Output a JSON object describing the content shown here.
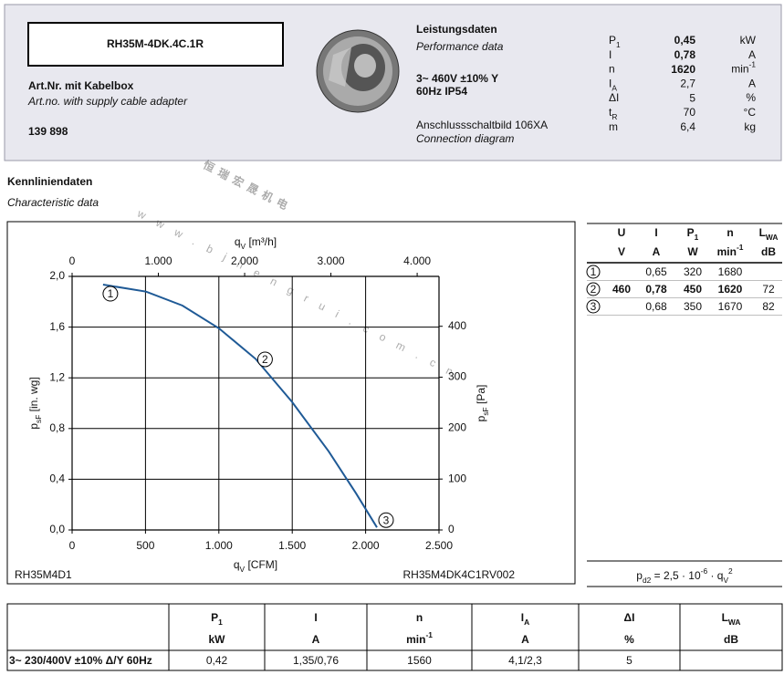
{
  "header": {
    "model": "RH35M-4DK.4C.1R",
    "art_de": "Art.Nr.  mit Kabelbox",
    "art_en": "Art.no.  with supply cable adapter",
    "number": "139 898",
    "perf_title": "Leistungsdaten",
    "perf_subtitle": "Performance data",
    "spec_line1": "3~ 460V ±10% Y",
    "spec_line2": "60Hz  IP54",
    "conn_de": "Anschlussschaltbild 106XA",
    "conn_en": "Connection diagram",
    "params": [
      {
        "symbol": [
          {
            "text": "P"
          },
          {
            "sub": "1"
          }
        ],
        "value": "0,45",
        "unit": [
          {
            "text": "kW"
          }
        ],
        "bold": true
      },
      {
        "symbol": [
          {
            "text": "I"
          }
        ],
        "value": "0,78",
        "unit": [
          {
            "text": "A"
          }
        ],
        "bold": true
      },
      {
        "symbol": [
          {
            "text": "n"
          }
        ],
        "value": "1620",
        "unit": [
          {
            "text": "min"
          },
          {
            "sup": "-1"
          }
        ],
        "bold": true
      },
      {
        "symbol": [
          {
            "text": "I"
          },
          {
            "sub": "A"
          }
        ],
        "value": "2,7",
        "unit": [
          {
            "text": "A"
          }
        ],
        "bold": false
      },
      {
        "symbol": [
          {
            "text": "ΔI"
          }
        ],
        "value": "5",
        "unit": [
          {
            "text": "%"
          }
        ],
        "bold": false
      },
      {
        "symbol": [
          {
            "text": "t"
          },
          {
            "sub": "R"
          }
        ],
        "value": "70",
        "unit": [
          {
            "text": "°C"
          }
        ],
        "bold": false
      },
      {
        "symbol": [
          {
            "text": "m"
          }
        ],
        "value": "6,4",
        "unit": [
          {
            "text": "kg"
          }
        ],
        "bold": false
      }
    ]
  },
  "section": {
    "title": "Kennliniendaten",
    "subtitle": "Characteristic data"
  },
  "watermark": {
    "text": "恒瑞宏晟机电",
    "url": "www.bjhengrui.com.cn"
  },
  "chart_data": {
    "type": "line",
    "x_label": [
      {
        "text": "q"
      },
      {
        "sub": "V"
      },
      {
        "text": " [CFM]"
      }
    ],
    "x2_label": [
      {
        "text": "q"
      },
      {
        "sub": "V"
      },
      {
        "text": " [m³/h]"
      }
    ],
    "y_label": [
      {
        "text": "p"
      },
      {
        "sub": "sF"
      },
      {
        "text": " [in. wg]"
      }
    ],
    "y2_label": [
      {
        "text": "p"
      },
      {
        "sub": "sF"
      },
      {
        "text": " [Pa]"
      }
    ],
    "xlim": [
      0,
      2500
    ],
    "xticks": [
      0,
      500,
      {
        "value": 1000,
        "label": "1.000"
      },
      {
        "value": 1500,
        "label": "1.500"
      },
      {
        "value": 2000,
        "label": "2.000"
      },
      {
        "value": 2500,
        "label": "2.500"
      }
    ],
    "x2lim": [
      0,
      4253
    ],
    "x2ticks": [
      0,
      {
        "value": 1000,
        "label": "1.000"
      },
      {
        "value": 2000,
        "label": "2.000"
      },
      {
        "value": 3000,
        "label": "3.000"
      },
      {
        "value": 4000,
        "label": "4.000"
      }
    ],
    "ylim": [
      0,
      2.0
    ],
    "yticks": [
      {
        "value": 0,
        "label": "0,0"
      },
      {
        "value": 0.4,
        "label": "0,4"
      },
      {
        "value": 0.8,
        "label": "0,8"
      },
      {
        "value": 1.2,
        "label": "1,2"
      },
      {
        "value": 1.6,
        "label": "1,6"
      },
      {
        "value": 2.0,
        "label": "2,0"
      }
    ],
    "y2lim": [
      0,
      498
    ],
    "y2ticks": [
      0,
      100,
      200,
      300,
      400
    ],
    "grid": true,
    "color": "#1f5a96",
    "x": [
      211,
      504,
      752,
      1001,
      1250,
      1499,
      1748,
      1934,
      2077
    ],
    "values": [
      1.935,
      1.88,
      1.77,
      1.59,
      1.35,
      1.01,
      0.62,
      0.29,
      0.02
    ],
    "operating_points": [
      {
        "label": "1",
        "x": 211,
        "value": 1.935
      },
      {
        "label": "2",
        "x": 1240,
        "value": 1.36
      },
      {
        "label": "3",
        "x": 2077,
        "value": 0.02
      }
    ],
    "note_left": "RH35M4D1",
    "note_right": "RH35M4DK4C1RV002"
  },
  "perf_table": {
    "header": [
      [
        {
          "text": "U"
        }
      ],
      [
        {
          "text": "I"
        }
      ],
      [
        {
          "text": "P"
        },
        {
          "sub": "1"
        }
      ],
      [
        {
          "text": "n"
        }
      ],
      [
        {
          "text": "L"
        },
        {
          "sub": "WA"
        }
      ]
    ],
    "units": [
      [
        {
          "text": "V"
        }
      ],
      [
        {
          "text": "A"
        }
      ],
      [
        {
          "text": "W"
        }
      ],
      [
        {
          "text": "min"
        },
        {
          "sup": "-1"
        }
      ],
      [
        {
          "text": "dB"
        }
      ]
    ],
    "rows": [
      [
        "1",
        null,
        "0,65",
        "320",
        "1680",
        null
      ],
      [
        "2",
        "460",
        "0,78",
        "450",
        "1620",
        "72"
      ],
      [
        "3",
        null,
        "0,68",
        "350",
        "1670",
        "82"
      ]
    ],
    "bold_row": 1,
    "bold_columns": [
      1,
      2,
      3,
      4
    ],
    "formula": [
      {
        "text": "p"
      },
      {
        "sub": "d2"
      },
      {
        "text": " = 2,5 · 10"
      },
      {
        "sup": "-6"
      },
      {
        "text": " · q"
      },
      {
        "sub": "V"
      },
      {
        "sup": "2"
      }
    ]
  },
  "bottom_table": {
    "header": [
      null,
      [
        {
          "text": "P"
        },
        {
          "sub": "1"
        }
      ],
      [
        {
          "text": "I"
        }
      ],
      [
        {
          "text": "n"
        }
      ],
      [
        {
          "text": "I"
        },
        {
          "sub": "A"
        }
      ],
      [
        {
          "text": "ΔI"
        }
      ],
      [
        {
          "text": "L"
        },
        {
          "sub": "WA"
        }
      ]
    ],
    "units": [
      null,
      [
        {
          "text": "kW"
        }
      ],
      [
        {
          "text": "A"
        }
      ],
      [
        {
          "text": "min"
        },
        {
          "sup": "-1"
        }
      ],
      [
        {
          "text": "A"
        }
      ],
      [
        {
          "text": "%"
        }
      ],
      [
        {
          "text": "dB"
        }
      ]
    ],
    "rows": [
      [
        "3~ 230/400V ±10% Δ/Y 60Hz",
        "0,42",
        "1,35/0,76",
        "1560",
        "4,1/2,3",
        "5",
        null
      ]
    ]
  }
}
